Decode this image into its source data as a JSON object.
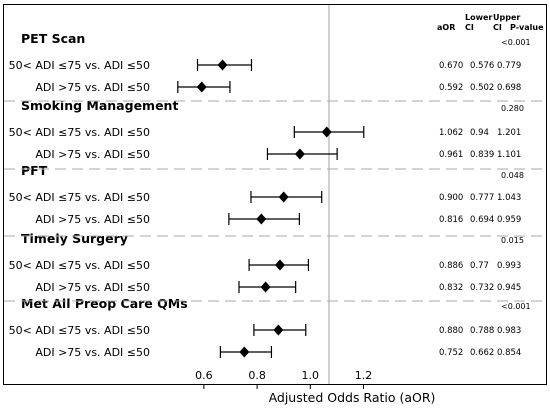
{
  "chart_data": {
    "type": "forest",
    "xlabel": "Adjusted Odds Ratio (aOR)",
    "x_ticks": [
      "0.6",
      "0.8",
      "1.0",
      "1.2"
    ],
    "x_tick_values": [
      0.6,
      0.8,
      1.0,
      1.2
    ],
    "xlim": [
      0.42,
      1.42
    ],
    "reference_line": 1.0,
    "columns": {
      "aor": "aOR",
      "lower_ci": [
        "Lower",
        "CI"
      ],
      "upper_ci": [
        "Upper",
        "CI"
      ],
      "p_value": "P-value"
    },
    "groups": [
      {
        "title": "PET Scan",
        "p_value": "<0.001",
        "rows": [
          {
            "label": "50< ADI ≤75 vs. ADI ≤50",
            "aor": 0.67,
            "lower": 0.576,
            "upper": 0.779,
            "aor_text": "0.670",
            "lower_text": "0.576",
            "upper_text": "0.779"
          },
          {
            "label": "ADI >75 vs. ADI ≤50",
            "aor": 0.592,
            "lower": 0.502,
            "upper": 0.698,
            "aor_text": "0.592",
            "lower_text": "0.502",
            "upper_text": "0.698"
          }
        ]
      },
      {
        "title": "Smoking Management",
        "p_value": "0.280",
        "rows": [
          {
            "label": "50< ADI ≤75 vs. ADI ≤50",
            "aor": 1.062,
            "lower": 0.94,
            "upper": 1.201,
            "aor_text": "1.062",
            "lower_text": "0.94",
            "upper_text": "1.201"
          },
          {
            "label": "ADI >75 vs. ADI ≤50",
            "aor": 0.961,
            "lower": 0.839,
            "upper": 1.101,
            "aor_text": "0.961",
            "lower_text": "0.839",
            "upper_text": "1.101"
          }
        ]
      },
      {
        "title": "PFT",
        "p_value": "0.048",
        "rows": [
          {
            "label": "50< ADI ≤75 vs. ADI ≤50",
            "aor": 0.9,
            "lower": 0.777,
            "upper": 1.043,
            "aor_text": "0.900",
            "lower_text": "0.777",
            "upper_text": "1.043"
          },
          {
            "label": "ADI >75 vs. ADI ≤50",
            "aor": 0.816,
            "lower": 0.694,
            "upper": 0.959,
            "aor_text": "0.816",
            "lower_text": "0.694",
            "upper_text": "0.959"
          }
        ]
      },
      {
        "title": "Timely Surgery",
        "p_value": "0.015",
        "rows": [
          {
            "label": "50< ADI ≤75 vs. ADI ≤50",
            "aor": 0.886,
            "lower": 0.77,
            "upper": 0.993,
            "aor_text": "0.886",
            "lower_text": "0.77",
            "upper_text": "0.993"
          },
          {
            "label": "ADI >75 vs. ADI ≤50",
            "aor": 0.832,
            "lower": 0.732,
            "upper": 0.945,
            "aor_text": "0.832",
            "lower_text": "0.732",
            "upper_text": "0.945"
          }
        ]
      },
      {
        "title": "Met All Preop Care QMs",
        "p_value": "<0.001",
        "rows": [
          {
            "label": "50< ADI ≤75 vs. ADI ≤50",
            "aor": 0.88,
            "lower": 0.788,
            "upper": 0.983,
            "aor_text": "0.880",
            "lower_text": "0.788",
            "upper_text": "0.983"
          },
          {
            "label": "ADI >75 vs. ADI ≤50",
            "aor": 0.752,
            "lower": 0.662,
            "upper": 0.854,
            "aor_text": "0.752",
            "lower_text": "0.662",
            "upper_text": "0.854"
          }
        ]
      }
    ],
    "colors": {
      "marker": "#000000",
      "ci_line": "#000000",
      "reference_line": "#a0a0a0",
      "separator": "#aaaaaa",
      "frame": "#000000"
    }
  }
}
